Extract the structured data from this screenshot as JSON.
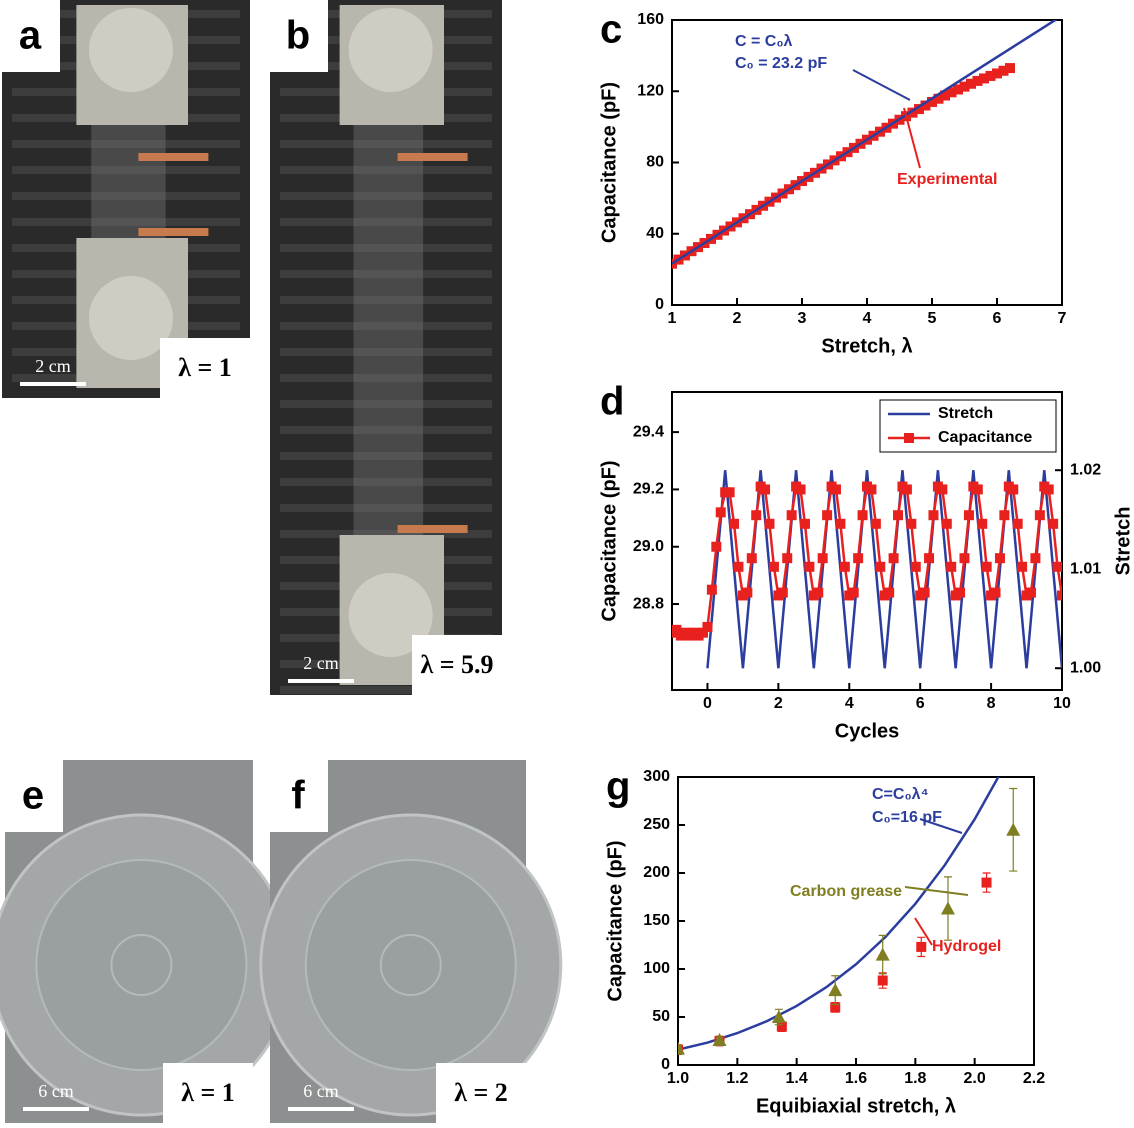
{
  "photos": [
    {
      "letter": "a",
      "lambda": "λ = 1",
      "scale": "2 cm"
    },
    {
      "letter": "b",
      "lambda": "λ = 5.9",
      "scale": "2 cm"
    },
    {
      "letter": "e",
      "lambda": "λ = 1",
      "scale": "6 cm"
    },
    {
      "letter": "f",
      "lambda": "λ = 2",
      "scale": "6 cm"
    }
  ],
  "chart_data": [
    {
      "type": "line",
      "panel": "c",
      "xlabel": "Stretch, λ",
      "ylabel": "Capacitance (pF)",
      "xlim": [
        1,
        7
      ],
      "ylim": [
        0,
        160
      ],
      "xticks": [
        1,
        2,
        3,
        4,
        5,
        6,
        7
      ],
      "yticks": [
        0,
        40,
        80,
        120,
        160
      ],
      "annotations": [
        {
          "text": "C = C₀λ",
          "color": "#2b3d9e"
        },
        {
          "text": "C₀ = 23.2 pF",
          "color": "#2b3d9e"
        },
        {
          "text": "Experimental",
          "color": "#e8211f"
        }
      ],
      "series": [
        {
          "color": "#e8211f",
          "marker": "square",
          "line": false,
          "x": [
            1.0,
            1.1,
            1.2,
            1.3,
            1.4,
            1.5,
            1.6,
            1.7,
            1.8,
            1.9,
            2.0,
            2.1,
            2.2,
            2.3,
            2.4,
            2.5,
            2.6,
            2.7,
            2.8,
            2.9,
            3.0,
            3.1,
            3.2,
            3.3,
            3.4,
            3.5,
            3.6,
            3.7,
            3.8,
            3.9,
            4.0,
            4.1,
            4.2,
            4.3,
            4.4,
            4.5,
            4.6,
            4.7,
            4.8,
            4.9,
            5.0,
            5.1,
            5.2,
            5.3,
            5.4,
            5.5,
            5.6,
            5.7,
            5.8,
            5.9,
            6.0,
            6.1,
            6.2
          ],
          "values": [
            23.2,
            25.5,
            27.8,
            30.2,
            32.5,
            34.8,
            37.1,
            39.4,
            41.8,
            44.1,
            46.4,
            48.7,
            51.0,
            53.4,
            55.7,
            58.0,
            60.3,
            62.6,
            65.0,
            67.3,
            69.6,
            71.9,
            74.2,
            76.6,
            78.9,
            81.2,
            83.5,
            85.8,
            88.2,
            90.5,
            92.8,
            95.0,
            97.3,
            99.5,
            101.8,
            104.0,
            106.0,
            108.0,
            110.0,
            112.0,
            114.0,
            115.8,
            117.6,
            119.4,
            121.0,
            122.6,
            124.2,
            125.8,
            127.2,
            128.6,
            130.0,
            131.5,
            133.0
          ]
        },
        {
          "color": "#2b3d9e",
          "marker": "none",
          "line": true,
          "x": [
            1,
            7
          ],
          "values": [
            23.2,
            162.4
          ]
        }
      ]
    },
    {
      "type": "line",
      "panel": "d",
      "xlabel": "Cycles",
      "ylabel": "Capacitance (pF)",
      "y2label": "Stretch",
      "xlim": [
        -1,
        10
      ],
      "ylim": [
        28.5,
        29.54
      ],
      "y2lim": [
        0.9978,
        1.0279
      ],
      "xticks": [
        0,
        2,
        4,
        6,
        8,
        10
      ],
      "yticks": [
        28.8,
        {
          "value": 29,
          "label": "29.0"
        },
        29.2,
        29.4
      ],
      "y2ticks": [
        {
          "value": 1,
          "label": "1.00"
        },
        1.01,
        1.02
      ],
      "legend": "upper right",
      "series": [
        {
          "name": "Stretch",
          "color": "#2b3d9e",
          "marker": "none",
          "line": true,
          "axis": "y2",
          "x": [
            0,
            0.5,
            1,
            1.5,
            2,
            2.5,
            3,
            3.5,
            4,
            4.5,
            5,
            5.5,
            6,
            6.5,
            7,
            7.5,
            8,
            8.5,
            9,
            9.5,
            10
          ],
          "values": [
            1.0,
            1.02,
            1.0,
            1.02,
            1.0,
            1.02,
            1.0,
            1.02,
            1.0,
            1.02,
            1.0,
            1.02,
            1.0,
            1.02,
            1.0,
            1.02,
            1.0,
            1.02,
            1.0,
            1.02,
            1.0
          ]
        },
        {
          "name": "Capacitance",
          "color": "#e8211f",
          "marker": "square",
          "line": true,
          "x": [
            -1,
            -0.875,
            -0.75,
            -0.625,
            -0.5,
            -0.375,
            -0.25,
            -0.125,
            0,
            0.125,
            0.25,
            0.375,
            0.5,
            0.625,
            0.75,
            0.875,
            1,
            1.125,
            1.25,
            1.375,
            1.5,
            1.625,
            1.75,
            1.875,
            2,
            2.125,
            2.25,
            2.375,
            2.5,
            2.625,
            2.75,
            2.875,
            3,
            3.125,
            3.25,
            3.375,
            3.5,
            3.625,
            3.75,
            3.875,
            4,
            4.125,
            4.25,
            4.375,
            4.5,
            4.625,
            4.75,
            4.875,
            5,
            5.125,
            5.25,
            5.375,
            5.5,
            5.625,
            5.75,
            5.875,
            6,
            6.125,
            6.25,
            6.375,
            6.5,
            6.625,
            6.75,
            6.875,
            7,
            7.125,
            7.25,
            7.375,
            7.5,
            7.625,
            7.75,
            7.875,
            8,
            8.125,
            8.25,
            8.375,
            8.5,
            8.625,
            8.75,
            8.875,
            9,
            9.125,
            9.25,
            9.375,
            9.5,
            9.625,
            9.75,
            9.875,
            10
          ],
          "values": [
            28.7,
            28.71,
            28.69,
            28.7,
            28.69,
            28.7,
            28.69,
            28.7,
            28.72,
            28.85,
            29.0,
            29.12,
            29.19,
            29.19,
            29.08,
            28.93,
            28.83,
            28.84,
            28.96,
            29.11,
            29.21,
            29.2,
            29.08,
            28.93,
            28.83,
            28.84,
            28.96,
            29.11,
            29.21,
            29.2,
            29.08,
            28.93,
            28.83,
            28.84,
            28.96,
            29.11,
            29.21,
            29.2,
            29.08,
            28.93,
            28.83,
            28.84,
            28.96,
            29.11,
            29.21,
            29.2,
            29.08,
            28.93,
            28.83,
            28.84,
            28.96,
            29.11,
            29.21,
            29.2,
            29.08,
            28.93,
            28.83,
            28.84,
            28.96,
            29.11,
            29.21,
            29.2,
            29.08,
            28.93,
            28.83,
            28.84,
            28.96,
            29.11,
            29.21,
            29.2,
            29.08,
            28.93,
            28.83,
            28.84,
            28.96,
            29.11,
            29.21,
            29.2,
            29.08,
            28.93,
            28.83,
            28.84,
            28.96,
            29.11,
            29.21,
            29.2,
            29.08,
            28.93,
            28.83
          ]
        }
      ]
    },
    {
      "type": "scatter",
      "panel": "g",
      "xlabel": "Equibiaxial stretch, λ",
      "ylabel": "Capacitance (pF)",
      "xlim": [
        1,
        2.2
      ],
      "ylim": [
        0,
        300
      ],
      "xticks": [
        {
          "value": 1,
          "label": "1.0"
        },
        1.2,
        1.4,
        1.6,
        1.8,
        {
          "value": 2,
          "label": "2.0"
        },
        2.2
      ],
      "yticks": [
        0,
        50,
        100,
        150,
        200,
        250,
        300
      ],
      "annotations": [
        {
          "text": "C=C₀λ⁴",
          "color": "#2b3d9e"
        },
        {
          "text": "C₀=16 pF",
          "color": "#2b3d9e"
        },
        {
          "text": "Carbon grease",
          "color": "#7f7f22"
        },
        {
          "text": "Hydrogel",
          "color": "#e8211f"
        }
      ],
      "series": [
        {
          "color": "#2b3d9e",
          "marker": "none",
          "line": true,
          "x": [
            1.0,
            1.1,
            1.2,
            1.3,
            1.4,
            1.5,
            1.6,
            1.7,
            1.8,
            1.9,
            2.0,
            2.1
          ],
          "values": [
            16,
            23.4,
            33.2,
            45.7,
            61.5,
            81.0,
            104.9,
            133.6,
            167.9,
            208.5,
            256,
            311.2
          ]
        },
        {
          "color": "#e8211f",
          "marker": "square",
          "line": false,
          "x": [
            1.0,
            1.14,
            1.35,
            1.53,
            1.69,
            1.82,
            2.04
          ],
          "values": [
            16,
            25,
            40,
            60,
            88,
            123,
            190
          ],
          "errors": [
            5,
            5,
            5,
            5,
            8,
            10,
            10
          ]
        },
        {
          "color": "#7f7f22",
          "marker": "triangle",
          "line": false,
          "x": [
            1.0,
            1.14,
            1.34,
            1.53,
            1.69,
            1.91,
            2.13
          ],
          "values": [
            17,
            26,
            50,
            78,
            115,
            163,
            245
          ],
          "errors": [
            3,
            3,
            8,
            15,
            20,
            33,
            43
          ]
        }
      ]
    }
  ]
}
